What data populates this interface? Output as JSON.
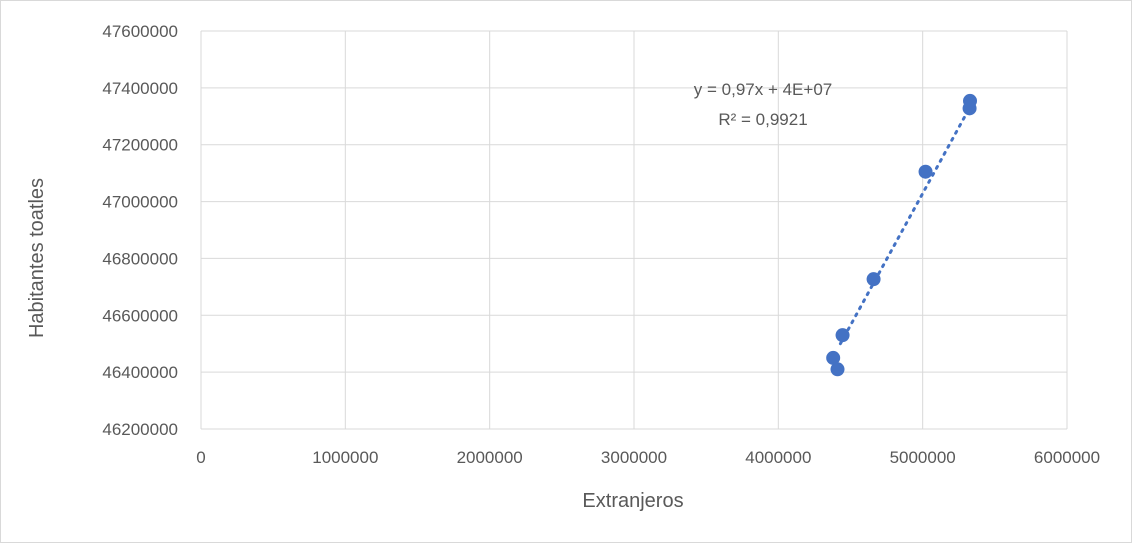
{
  "chart_data": {
    "type": "scatter",
    "xlabel": "Extranjeros",
    "ylabel": "Habitantes toatles",
    "xlim": [
      0,
      6000000
    ],
    "ylim": [
      46200000,
      47600000
    ],
    "x_ticks": [
      "0",
      "1000000",
      "2000000",
      "3000000",
      "4000000",
      "5000000",
      "6000000"
    ],
    "y_ticks": [
      "46200000",
      "46400000",
      "46600000",
      "46800000",
      "47000000",
      "47200000",
      "47400000",
      "47600000"
    ],
    "grid": true,
    "legend": "none",
    "points": [
      {
        "x": 4380000,
        "y": 46450000
      },
      {
        "x": 4410000,
        "y": 46410000
      },
      {
        "x": 4445000,
        "y": 46530000
      },
      {
        "x": 4660000,
        "y": 46727000
      },
      {
        "x": 5020000,
        "y": 47105000
      },
      {
        "x": 5325000,
        "y": 47328000
      },
      {
        "x": 5328000,
        "y": 47354000
      }
    ],
    "trendline": {
      "style": "dotted",
      "x": [
        4430000,
        5325000
      ],
      "y": [
        46500000,
        47330000
      ]
    },
    "annotations": [
      "y = 0,97x + 4E+07",
      "R² = 0,9921"
    ],
    "colors": {
      "marker": "#4472c4",
      "trendline": "#4472c4",
      "grid": "#d9d9d9",
      "text": "#595959"
    }
  }
}
